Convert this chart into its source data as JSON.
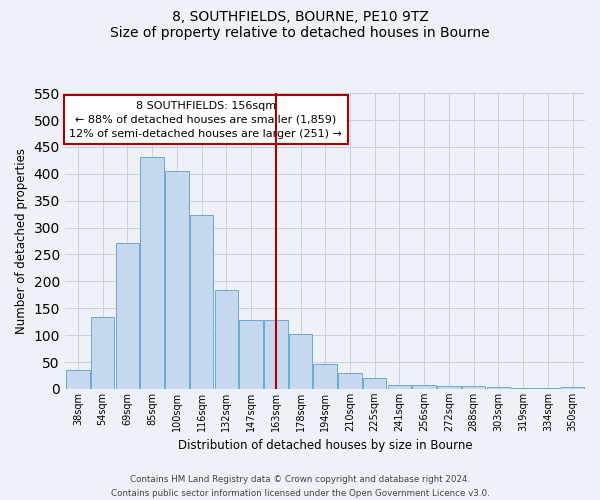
{
  "title": "8, SOUTHFIELDS, BOURNE, PE10 9TZ",
  "subtitle": "Size of property relative to detached houses in Bourne",
  "xlabel": "Distribution of detached houses by size in Bourne",
  "ylabel": "Number of detached properties",
  "bar_labels": [
    "38sqm",
    "54sqm",
    "69sqm",
    "85sqm",
    "100sqm",
    "116sqm",
    "132sqm",
    "147sqm",
    "163sqm",
    "178sqm",
    "194sqm",
    "210sqm",
    "225sqm",
    "241sqm",
    "256sqm",
    "272sqm",
    "288sqm",
    "303sqm",
    "319sqm",
    "334sqm",
    "350sqm"
  ],
  "bar_values": [
    35,
    133,
    272,
    432,
    405,
    323,
    184,
    128,
    128,
    103,
    46,
    30,
    20,
    8,
    8,
    5,
    5,
    3,
    2,
    1,
    3
  ],
  "bar_color": "#c5d8ed",
  "bar_edge_color": "#6aaad4",
  "vline_index": 8,
  "vline_color": "#aa0000",
  "annotation_title": "8 SOUTHFIELDS: 156sqm",
  "annotation_line1": "← 88% of detached houses are smaller (1,859)",
  "annotation_line2": "12% of semi-detached houses are larger (251) →",
  "annotation_box_color": "#ffffff",
  "annotation_box_edge": "#aa0000",
  "ylim": [
    0,
    550
  ],
  "yticks": [
    0,
    50,
    100,
    150,
    200,
    250,
    300,
    350,
    400,
    450,
    500,
    550
  ],
  "footer_line1": "Contains HM Land Registry data © Crown copyright and database right 2024.",
  "footer_line2": "Contains public sector information licensed under the Open Government Licence v3.0.",
  "bg_color": "#eef2f8",
  "grid_color": "#c8cfe0",
  "plot_bg_color": "#eef2f8"
}
